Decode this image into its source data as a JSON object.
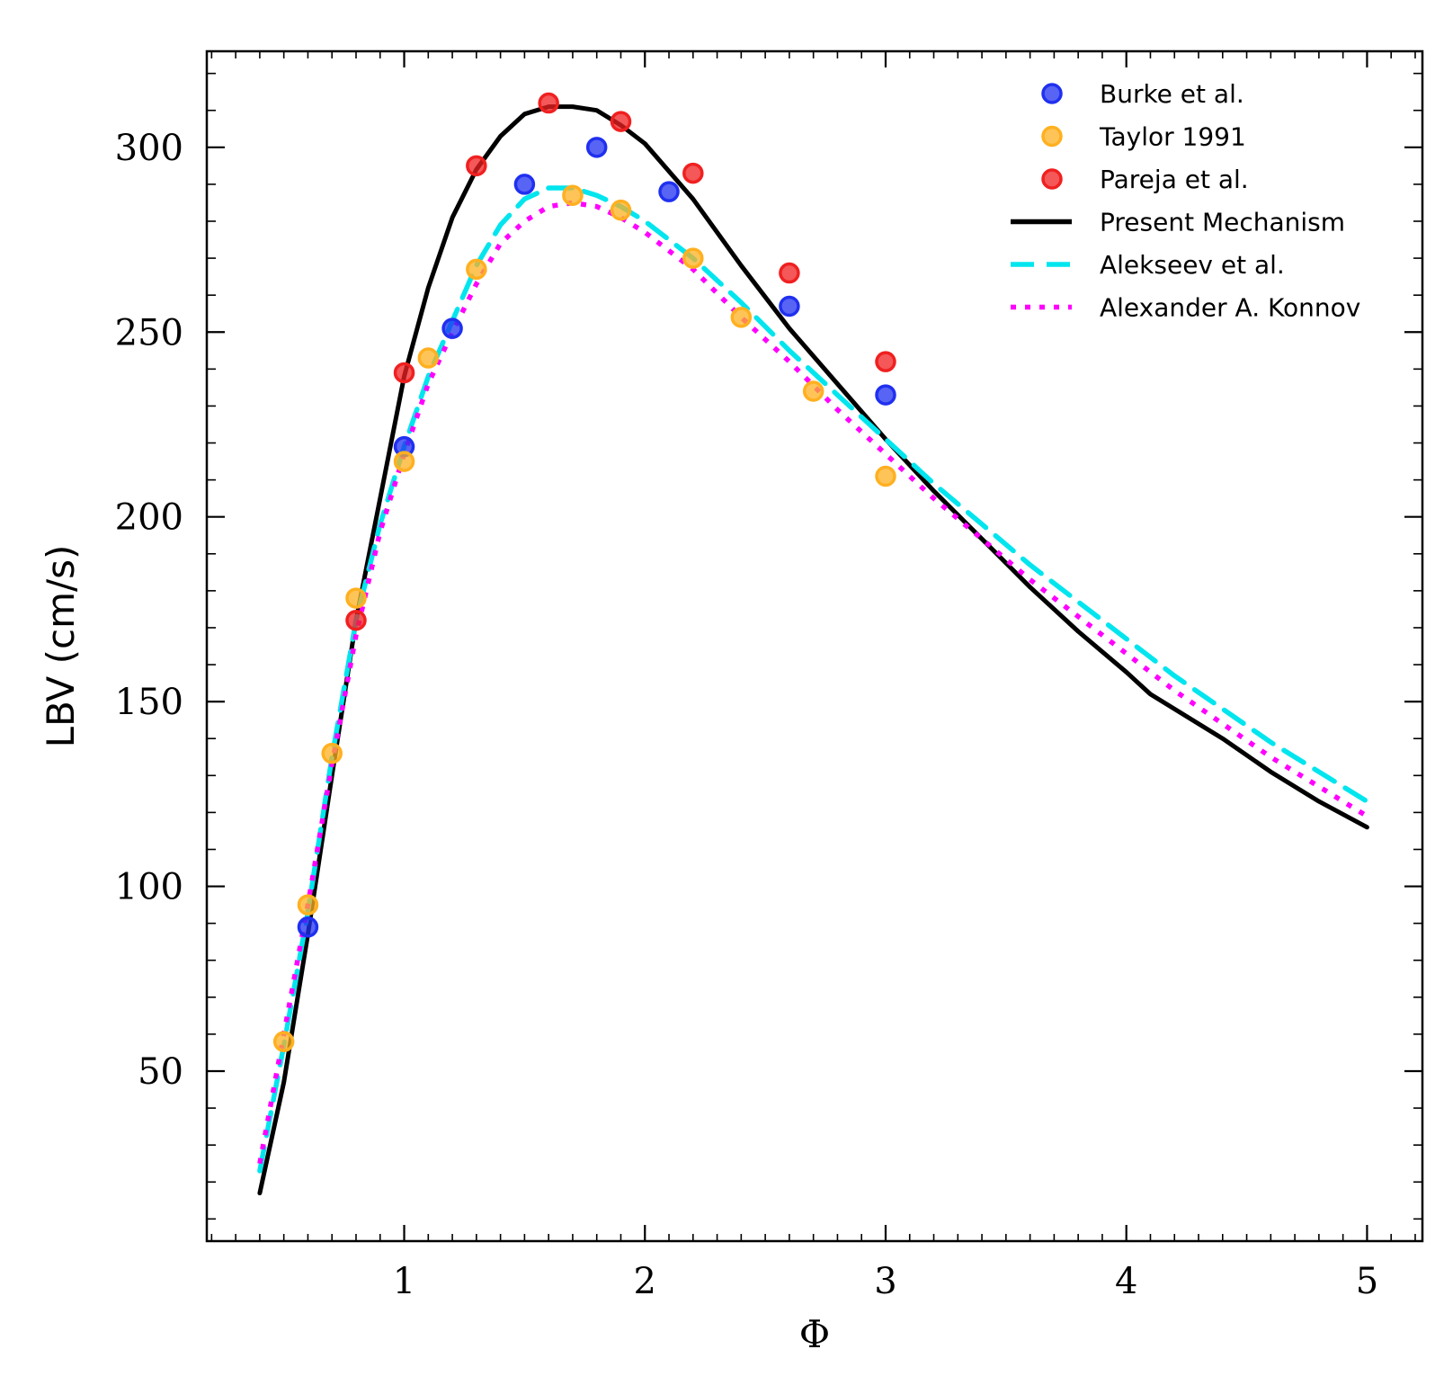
{
  "chart_data": {
    "type": "line",
    "title": "",
    "xlabel": "Φ",
    "ylabel": "LBV (cm/s)",
    "xlim": [
      0.18,
      5.23
    ],
    "ylim": [
      4,
      326
    ],
    "xticks": [
      1,
      2,
      3,
      4,
      5
    ],
    "yticks": [
      50,
      100,
      150,
      200,
      250,
      300
    ],
    "xtick_labels": [
      "1",
      "2",
      "3",
      "4",
      "5"
    ],
    "ytick_labels": [
      "50",
      "100",
      "150",
      "200",
      "250",
      "300"
    ],
    "grid": false,
    "legend_position": "top-right",
    "series": [
      {
        "name": "Burke et al.",
        "kind": "scatter",
        "color": "#2030f0",
        "x": [
          0.6,
          1.0,
          1.2,
          1.5,
          1.8,
          2.1,
          2.6,
          3.0
        ],
        "y": [
          89,
          219,
          251,
          290,
          300,
          288,
          257,
          233
        ]
      },
      {
        "name": "Taylor 1991",
        "kind": "scatter",
        "color": "#ffb020",
        "x": [
          0.5,
          0.6,
          0.7,
          0.8,
          1.0,
          1.1,
          1.3,
          1.7,
          1.9,
          2.2,
          2.4,
          2.7,
          3.0
        ],
        "y": [
          58,
          95,
          136,
          178,
          215,
          243,
          267,
          287,
          283,
          270,
          254,
          234,
          211
        ]
      },
      {
        "name": "Pareja et al.",
        "kind": "scatter",
        "color": "#f02020",
        "x": [
          0.8,
          1.0,
          1.3,
          1.6,
          1.9,
          2.2,
          2.6,
          3.0
        ],
        "y": [
          172,
          239,
          295,
          312,
          307,
          293,
          266,
          242
        ]
      },
      {
        "name": "Present Mechanism",
        "kind": "line",
        "style": "solid",
        "color": "#000000",
        "x": [
          0.4,
          0.5,
          0.6,
          0.7,
          0.8,
          0.9,
          1.0,
          1.1,
          1.2,
          1.3,
          1.4,
          1.5,
          1.6,
          1.7,
          1.8,
          1.9,
          2.0,
          2.2,
          2.4,
          2.6,
          2.8,
          3.0,
          3.2,
          3.4,
          3.6,
          3.8,
          4.0,
          4.1,
          4.4,
          4.6,
          4.8,
          5.0
        ],
        "y": [
          17,
          47,
          87,
          130,
          172,
          205,
          238,
          262,
          281,
          294,
          303,
          309,
          311,
          311,
          310,
          306,
          301,
          286,
          268,
          251,
          236,
          221,
          207,
          194,
          181,
          169,
          158,
          152,
          140,
          131,
          123,
          116
        ]
      },
      {
        "name": "Alekseev et al.",
        "kind": "line",
        "style": "dashed",
        "color": "#00e5ee",
        "x": [
          0.4,
          0.5,
          0.6,
          0.7,
          0.8,
          0.9,
          1.0,
          1.1,
          1.2,
          1.3,
          1.4,
          1.5,
          1.6,
          1.7,
          1.8,
          1.9,
          2.0,
          2.2,
          2.4,
          2.6,
          2.8,
          3.0,
          3.2,
          3.4,
          3.6,
          3.8,
          4.0,
          4.2,
          4.4,
          4.6,
          4.8,
          5.0
        ],
        "y": [
          23,
          57,
          93,
          135,
          172,
          198,
          219,
          238,
          253,
          268,
          279,
          286,
          289,
          289,
          287,
          284,
          280,
          270,
          258,
          245,
          233,
          221,
          209,
          198,
          187,
          177,
          167,
          157,
          148,
          139,
          131,
          123
        ]
      },
      {
        "name": "Alexander A. Konnov",
        "kind": "line",
        "style": "dotted",
        "color": "#ff00ff",
        "x": [
          0.4,
          0.5,
          0.6,
          0.7,
          0.8,
          0.9,
          1.0,
          1.1,
          1.2,
          1.3,
          1.4,
          1.5,
          1.6,
          1.7,
          1.8,
          1.9,
          2.0,
          2.2,
          2.4,
          2.6,
          2.8,
          3.0,
          3.2,
          3.4,
          3.6,
          3.8,
          4.0,
          4.2,
          4.4,
          4.6,
          4.8,
          5.0
        ],
        "y": [
          25,
          60,
          95,
          133,
          168,
          196,
          217,
          236,
          250,
          263,
          274,
          280,
          284,
          285,
          284,
          281,
          277,
          267,
          254,
          242,
          229,
          217,
          205,
          194,
          183,
          173,
          163,
          153,
          144,
          135,
          127,
          119
        ]
      }
    ]
  }
}
